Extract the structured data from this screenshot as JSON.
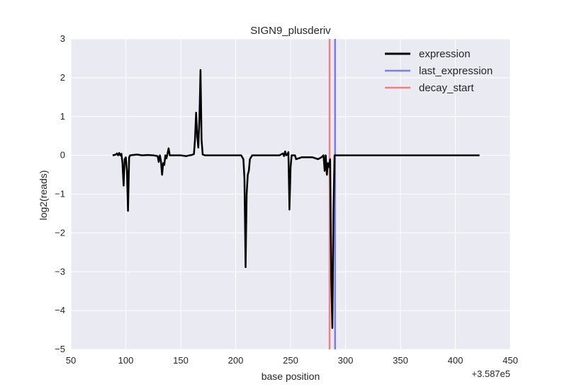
{
  "chart_data": {
    "type": "line",
    "title": "SIGN9_plusderiv",
    "xlabel": "base position",
    "ylabel": "log2(reads)",
    "x_offset_text": "+3.587e5",
    "xlim": [
      50,
      450
    ],
    "ylim": [
      -5,
      3
    ],
    "xticks": [
      50,
      100,
      150,
      200,
      250,
      300,
      350,
      400,
      450
    ],
    "yticks": [
      -5,
      -4,
      -3,
      -2,
      -1,
      0,
      1,
      2,
      3
    ],
    "grid": true,
    "legend_position": "top-right",
    "colors": {
      "background": "#eaeaf2",
      "grid": "#ffffff",
      "expression": "#000000",
      "last_expression": "#7b7bf0",
      "decay_start": "#f08080"
    },
    "series": [
      {
        "name": "expression",
        "x": [
          88,
          91,
          92,
          93,
          94,
          95,
          96,
          97,
          98,
          99,
          100,
          101,
          102,
          103,
          104,
          110,
          115,
          120,
          125,
          129,
          130,
          131,
          132,
          133,
          134,
          135,
          136,
          137,
          138,
          139,
          140,
          141,
          145,
          150,
          155,
          158,
          160,
          162,
          163,
          164,
          165,
          166,
          167,
          168,
          169,
          170,
          172,
          175,
          180,
          190,
          200,
          205,
          207,
          208,
          209,
          210,
          211,
          212,
          213,
          214,
          215,
          216,
          220,
          230,
          240,
          243,
          244,
          245,
          246,
          247,
          248,
          249,
          250,
          251,
          252,
          253,
          254,
          255,
          260,
          270,
          275,
          278,
          280,
          281,
          282,
          283,
          284,
          285,
          286,
          287,
          288,
          289,
          290,
          291,
          292,
          300,
          350,
          400,
          422
        ],
        "values": [
          0,
          0.02,
          0.05,
          0,
          0.06,
          0,
          0.04,
          -0.2,
          -0.78,
          -0.1,
          -0.05,
          -0.4,
          -1.43,
          -0.05,
          0,
          0.02,
          0,
          0.01,
          0,
          -0.02,
          -0.17,
          0,
          -0.15,
          -0.5,
          -0.2,
          -0.25,
          0,
          -0.08,
          0.05,
          0.18,
          0,
          0,
          0,
          0,
          -0.02,
          0,
          0.01,
          0.03,
          0.4,
          1.1,
          0.5,
          0.2,
          0.95,
          2.2,
          0.4,
          0.02,
          0,
          0,
          0,
          0,
          0,
          0,
          -0.1,
          -0.6,
          -2.88,
          -1.0,
          -0.5,
          -0.4,
          -0.1,
          -0.05,
          0,
          0,
          0,
          0,
          0,
          0.05,
          -0.02,
          0.1,
          0,
          0.02,
          0.08,
          -1.4,
          -0.3,
          0,
          0,
          0,
          0,
          -0.1,
          -0.05,
          -0.05,
          -0.1,
          -0.05,
          0,
          -0.4,
          0,
          -0.5,
          -0.2,
          -0.3,
          -0.1,
          -3.2,
          -4.45,
          -1.5,
          0,
          0,
          0,
          0,
          0,
          0,
          0
        ]
      },
      {
        "name": "last_expression",
        "vline_x": 290.5
      },
      {
        "name": "decay_start",
        "vline_x": 285.5
      }
    ]
  }
}
